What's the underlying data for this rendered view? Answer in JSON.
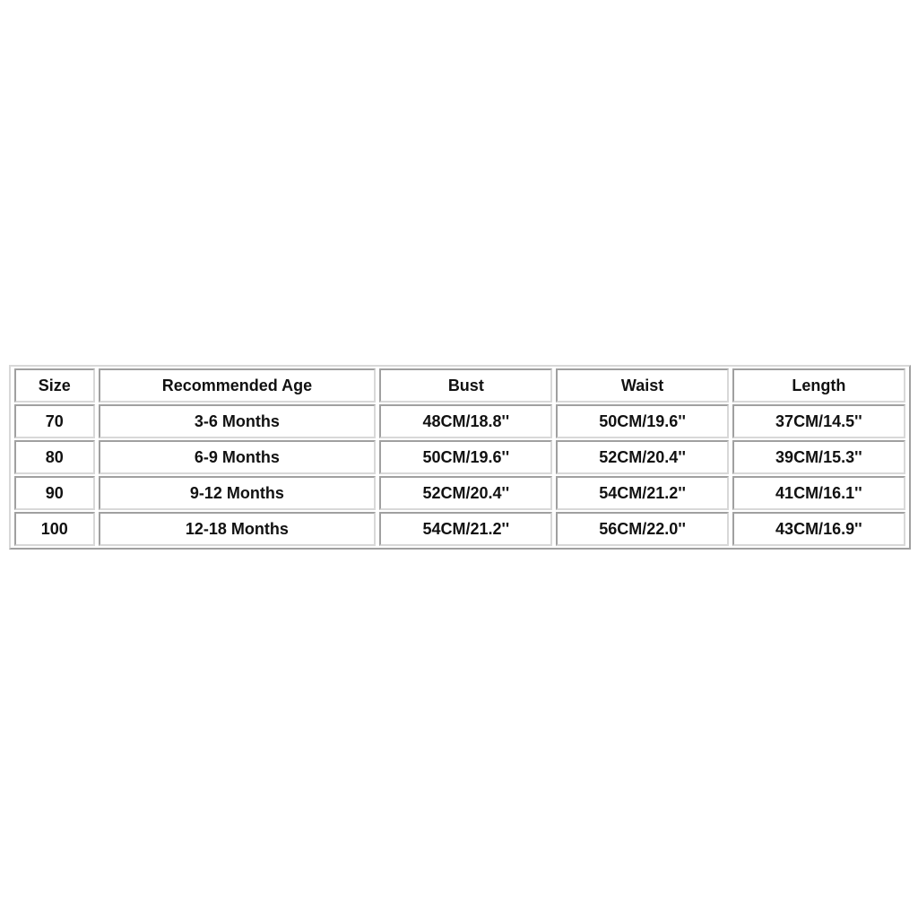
{
  "table": {
    "headers": [
      "Size",
      "Recommended Age",
      "Bust",
      "Waist",
      "Length"
    ],
    "rows": [
      [
        "70",
        "3-6 Months",
        "48CM/18.8''",
        "50CM/19.6''",
        "37CM/14.5''"
      ],
      [
        "80",
        "6-9 Months",
        "50CM/19.6''",
        "52CM/20.4''",
        "39CM/15.3''"
      ],
      [
        "90",
        "9-12 Months",
        "52CM/20.4''",
        "54CM/21.2''",
        "41CM/16.1''"
      ],
      [
        "100",
        "12-18 Months",
        "54CM/21.2''",
        "56CM/22.0''",
        "43CM/16.9''"
      ]
    ]
  }
}
